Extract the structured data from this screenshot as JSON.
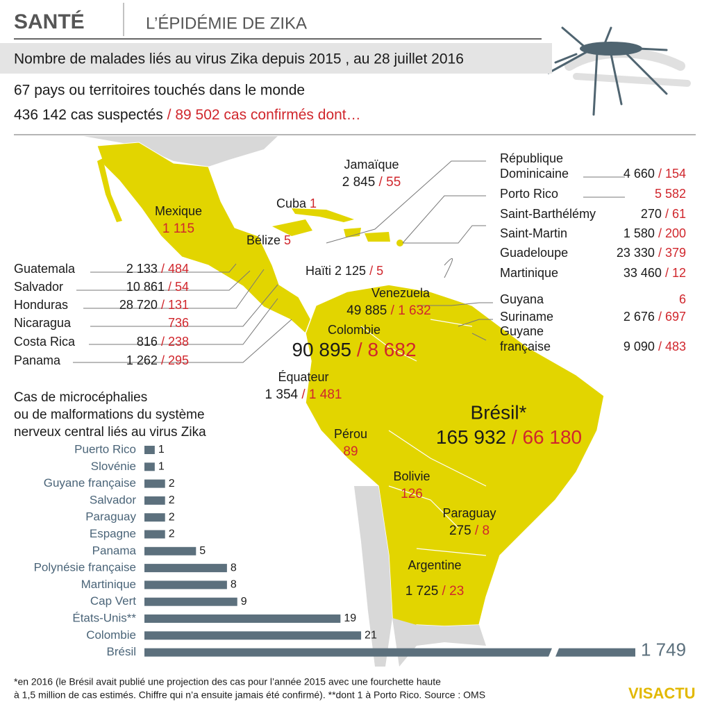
{
  "header": {
    "section": "SANTÉ",
    "title": "L’ÉPIDÉMIE DE ZIKA",
    "subtitle": "Nombre de malades liés au virus Zika depuis 2015 , au 28 juillet 2016",
    "stats": {
      "countries": "67 pays ou territoires touchés dans le monde",
      "suspected": "436 142 cas suspectés",
      "separator": " / ",
      "confirmed": "89 502 cas confirmés dont…"
    }
  },
  "map": {
    "separator": " / ",
    "labels": [
      {
        "name": [
          "Mexique"
        ],
        "confirmed": "1 115"
      },
      {
        "name": [
          "Cuba"
        ],
        "confirmed": "1"
      },
      {
        "name": [
          "Jamaïque"
        ],
        "suspected": "2 845",
        "confirmed": "55"
      },
      {
        "name": [
          "Bélize"
        ],
        "confirmed": "5"
      },
      {
        "name": [
          "Haïti"
        ],
        "suspected": "2 125",
        "confirmed": "5"
      },
      {
        "name": [
          "Venezuela"
        ],
        "suspected": "49 885",
        "confirmed": "1 632"
      },
      {
        "name": [
          "Colombie"
        ],
        "suspected": "90 895",
        "confirmed": "8 682"
      },
      {
        "name": [
          "Équateur"
        ],
        "suspected": "1 354",
        "confirmed": "1 481"
      },
      {
        "name": [
          "Brésil*"
        ],
        "suspected": "165 932",
        "confirmed": "66 180"
      },
      {
        "name": [
          "Pérou"
        ],
        "confirmed": "89"
      },
      {
        "name": [
          "Bolivie"
        ],
        "confirmed": "126"
      },
      {
        "name": [
          "Paraguay"
        ],
        "suspected": "275",
        "confirmed": "8"
      },
      {
        "name": [
          "Argentine"
        ],
        "suspected": "1 725",
        "confirmed": "23"
      },
      {
        "name": [
          "Guatemala"
        ],
        "suspected": "2 133",
        "confirmed": "484"
      },
      {
        "name": [
          "Salvador"
        ],
        "suspected": "10 861",
        "confirmed": "54"
      },
      {
        "name": [
          "Honduras"
        ],
        "suspected": "28 720",
        "confirmed": "131"
      },
      {
        "name": [
          "Nicaragua"
        ],
        "confirmed": "736"
      },
      {
        "name": [
          "Costa Rica"
        ],
        "suspected": "816",
        "confirmed": "238"
      },
      {
        "name": [
          "Panama"
        ],
        "suspected": "1 262",
        "confirmed": "295"
      },
      {
        "name": [
          "République",
          "Dominicaine"
        ],
        "suspected": "4 660",
        "confirmed": "154"
      },
      {
        "name": [
          "Porto Rico"
        ],
        "confirmed": "5 582"
      },
      {
        "name": [
          "Saint-Barthélémy"
        ],
        "suspected": "270",
        "confirmed": "61"
      },
      {
        "name": [
          "Saint-Martin"
        ],
        "suspected": "1 580",
        "confirmed": "200"
      },
      {
        "name": [
          "Guadeloupe"
        ],
        "suspected": "23 330",
        "confirmed": "379"
      },
      {
        "name": [
          "Martinique"
        ],
        "suspected": "33 460",
        "confirmed": "12"
      },
      {
        "name": [
          "Guyana"
        ],
        "confirmed": "6"
      },
      {
        "name": [
          "Suriname"
        ],
        "suspected": "2 676",
        "confirmed": "697"
      },
      {
        "name": [
          "Guyane",
          "française"
        ],
        "suspected": "9 090",
        "confirmed": "483"
      }
    ]
  },
  "chart_data": {
    "type": "bar",
    "orientation": "horizontal",
    "title": [
      "Cas de microcéphalies",
      "ou de malformations du système",
      "nerveux central liés au virus Zika"
    ],
    "categories": [
      "Puerto Rico",
      "Slovénie",
      "Guyane française",
      "Salvador",
      "Paraguay",
      "Espagne",
      "Panama",
      "Polynésie française",
      "Martinique",
      "Cap Vert",
      "États-Unis**",
      "Colombie",
      "Brésil"
    ],
    "values": [
      1,
      1,
      2,
      2,
      2,
      2,
      5,
      8,
      8,
      9,
      19,
      21,
      1749
    ],
    "value_labels": [
      "1",
      "1",
      "2",
      "2",
      "2",
      "2",
      "5",
      "8",
      "8",
      "9",
      "19",
      "21",
      "1 749"
    ],
    "color": "#5c707d",
    "label_color": "#4a6478"
  },
  "footer": {
    "note": [
      "*en 2016 (le Brésil avait publié une projection des cas pour l’année 2015 avec une fourchette haute",
      "à 1,5 million de cas estimés. Chiffre qui n’a ensuite jamais été confirmé).  **dont 1 à Porto Rico.  Source : OMS"
    ],
    "logo": "VISACTU"
  }
}
